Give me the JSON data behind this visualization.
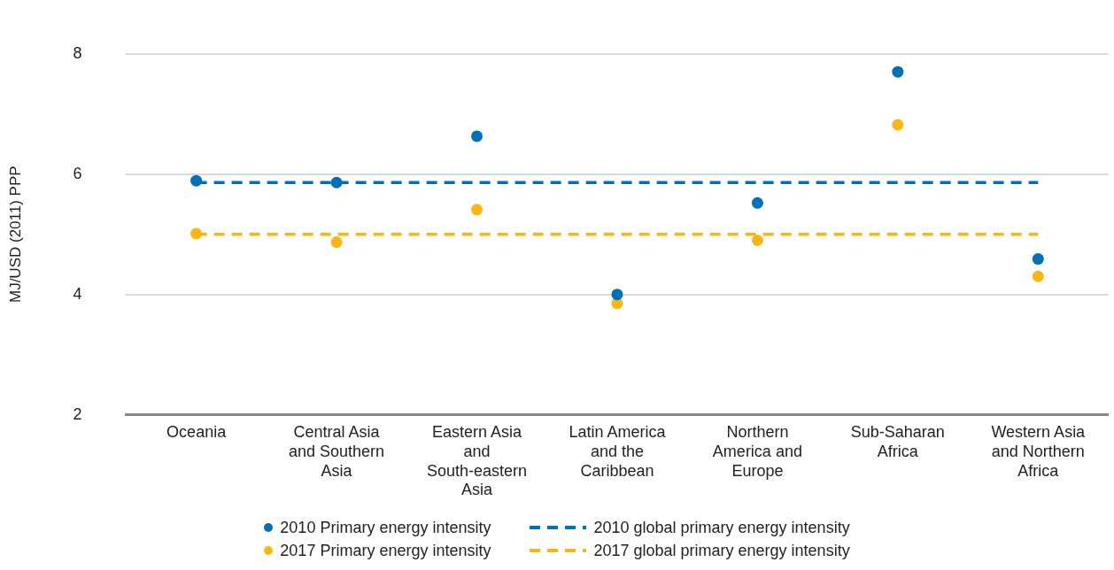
{
  "chart_data": {
    "type": "scatter",
    "ylabel": "MJ/USD (2011) PPP",
    "categories": [
      "Oceania",
      "Central Asia and Southern Asia",
      "Eastern Asia and South-eastern Asia",
      "Latin America and the Caribbean",
      "Northern America and Europe",
      "Sub-Saharan Africa",
      "Western Asia and Northern Africa"
    ],
    "series": [
      {
        "name": "2010 Primary energy intensity",
        "color": "#0070b8",
        "marker": "circle",
        "values": [
          5.89,
          5.86,
          6.63,
          4.0,
          5.52,
          7.7,
          4.59
        ]
      },
      {
        "type": "line",
        "name": "2010 global primary energy intensity",
        "color": "#0070b8",
        "line_style": "dashed",
        "values": [
          5.86,
          5.86,
          5.86,
          5.86,
          5.86,
          5.86,
          5.86
        ]
      },
      {
        "name": "2017 Primary energy intensity",
        "color": "#fbb613",
        "marker": "circle",
        "values": [
          5.01,
          4.87,
          5.41,
          3.85,
          4.9,
          6.82,
          4.3
        ]
      },
      {
        "type": "line",
        "name": "2017 global primary energy intensity",
        "color": "#fbb613",
        "line_style": "dashed",
        "values": [
          5.0,
          5.0,
          5.0,
          5.0,
          5.0,
          5.0,
          5.0
        ]
      }
    ],
    "ylim": [
      2,
      8
    ],
    "yticks": [
      2,
      4,
      6,
      8
    ],
    "grid": "y",
    "legend": "bottom"
  }
}
